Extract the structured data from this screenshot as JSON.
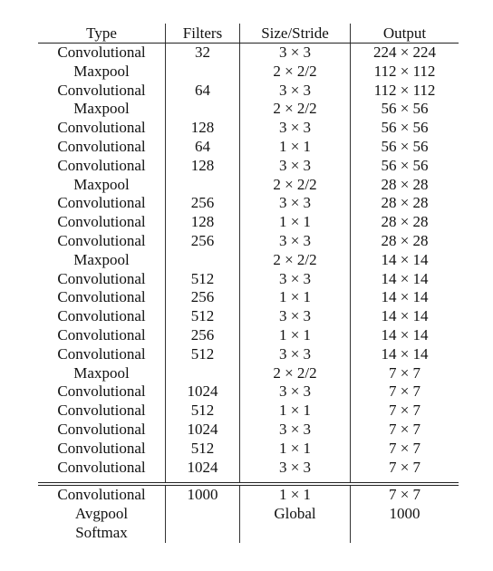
{
  "table": {
    "headers": [
      "Type",
      "Filters",
      "Size/Stride",
      "Output"
    ],
    "rows": [
      [
        "Convolutional",
        "32",
        "3 × 3",
        "224 × 224"
      ],
      [
        "Maxpool",
        "",
        "2 × 2/2",
        "112 × 112"
      ],
      [
        "Convolutional",
        "64",
        "3 × 3",
        "112 × 112"
      ],
      [
        "Maxpool",
        "",
        "2 × 2/2",
        "56 × 56"
      ],
      [
        "Convolutional",
        "128",
        "3 × 3",
        "56 × 56"
      ],
      [
        "Convolutional",
        "64",
        "1 × 1",
        "56 × 56"
      ],
      [
        "Convolutional",
        "128",
        "3 × 3",
        "56 × 56"
      ],
      [
        "Maxpool",
        "",
        "2 × 2/2",
        "28 × 28"
      ],
      [
        "Convolutional",
        "256",
        "3 × 3",
        "28 × 28"
      ],
      [
        "Convolutional",
        "128",
        "1 × 1",
        "28 × 28"
      ],
      [
        "Convolutional",
        "256",
        "3 × 3",
        "28 × 28"
      ],
      [
        "Maxpool",
        "",
        "2 × 2/2",
        "14 × 14"
      ],
      [
        "Convolutional",
        "512",
        "3 × 3",
        "14 × 14"
      ],
      [
        "Convolutional",
        "256",
        "1 × 1",
        "14 × 14"
      ],
      [
        "Convolutional",
        "512",
        "3 × 3",
        "14 × 14"
      ],
      [
        "Convolutional",
        "256",
        "1 × 1",
        "14 × 14"
      ],
      [
        "Convolutional",
        "512",
        "3 × 3",
        "14 × 14"
      ],
      [
        "Maxpool",
        "",
        "2 × 2/2",
        "7 × 7"
      ],
      [
        "Convolutional",
        "1024",
        "3 × 3",
        "7 × 7"
      ],
      [
        "Convolutional",
        "512",
        "1 × 1",
        "7 × 7"
      ],
      [
        "Convolutional",
        "1024",
        "3 × 3",
        "7 × 7"
      ],
      [
        "Convolutional",
        "512",
        "1 × 1",
        "7 × 7"
      ],
      [
        "Convolutional",
        "1024",
        "3 × 3",
        "7 × 7"
      ]
    ],
    "footer_rows": [
      [
        "Convolutional",
        "1000",
        "1 × 1",
        "7 × 7"
      ],
      [
        "Avgpool",
        "",
        "Global",
        "1000"
      ],
      [
        "Softmax",
        "",
        "",
        ""
      ]
    ]
  }
}
